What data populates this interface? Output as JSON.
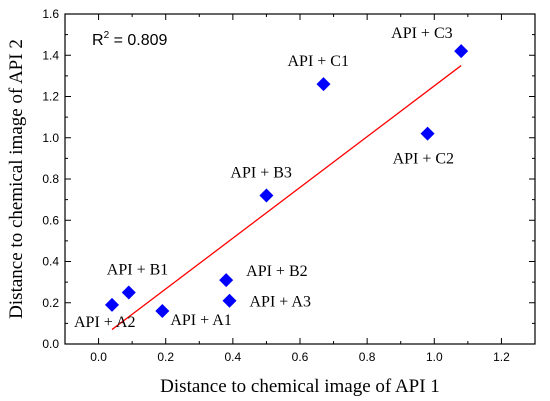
{
  "chart_data": {
    "type": "scatter",
    "xlabel": "Distance to chemical image of API 1",
    "ylabel": "Distance to chemical image of API 2",
    "xlim": [
      -0.1,
      1.3
    ],
    "ylim": [
      0.0,
      1.6
    ],
    "xticks": [
      "0.0",
      "0.2",
      "0.4",
      "0.6",
      "0.8",
      "1.0",
      "1.2"
    ],
    "yticks": [
      "0.0",
      "0.2",
      "0.4",
      "0.6",
      "0.8",
      "1.0",
      "1.2",
      "1.4",
      "1.6"
    ],
    "grid": false,
    "marker": "diamond",
    "marker_color": "#0000ff",
    "fit_color": "#ff0000",
    "annotation": {
      "lhs": "R",
      "sup": "2",
      "rhs": " = 0.809"
    },
    "points": [
      {
        "label": "API + A1",
        "x": 0.19,
        "y": 0.16
      },
      {
        "label": "API + A2",
        "x": 0.04,
        "y": 0.19
      },
      {
        "label": "API + A3",
        "x": 0.39,
        "y": 0.21
      },
      {
        "label": "API + B1",
        "x": 0.09,
        "y": 0.25
      },
      {
        "label": "API + B2",
        "x": 0.38,
        "y": 0.31
      },
      {
        "label": "API + B3",
        "x": 0.5,
        "y": 0.72
      },
      {
        "label": "API + C1",
        "x": 0.67,
        "y": 1.26
      },
      {
        "label": "API + C2",
        "x": 0.98,
        "y": 1.02
      },
      {
        "label": "API + C3",
        "x": 1.08,
        "y": 1.42
      }
    ],
    "fit_line": {
      "x": [
        0.04,
        1.08
      ],
      "y": [
        0.07,
        1.35
      ]
    }
  }
}
